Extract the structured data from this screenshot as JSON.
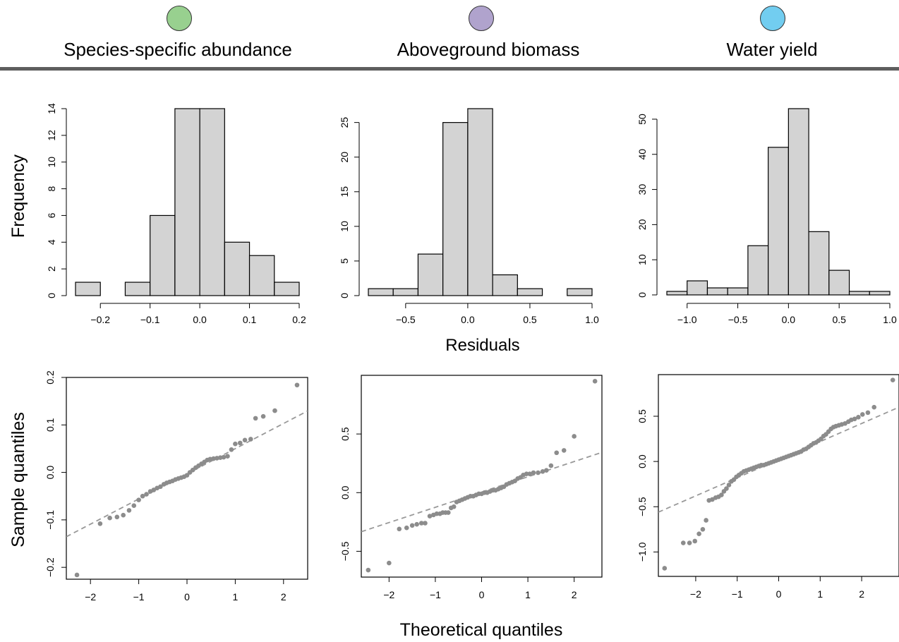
{
  "header": {
    "panels": [
      {
        "label": "Species-specific abundance",
        "color": "#98d08f"
      },
      {
        "label": "Aboveground biomass",
        "color": "#b0a3cd"
      },
      {
        "label": "Water yield",
        "color": "#72cdf0"
      }
    ]
  },
  "labels": {
    "frequency": "Frequency",
    "residuals": "Residuals",
    "sample_quantiles": "Sample quantiles",
    "theoretical_quantiles": "Theoretical quantiles"
  },
  "chart_data": [
    {
      "type": "bar",
      "panel": "Species-specific abundance",
      "subtype": "histogram",
      "bin_edges": [
        -0.25,
        -0.2,
        -0.15,
        -0.1,
        -0.05,
        0.0,
        0.05,
        0.1,
        0.15,
        0.2
      ],
      "counts": [
        1,
        0,
        1,
        6,
        14,
        14,
        4,
        3,
        1
      ],
      "xticks": [
        -0.2,
        -0.1,
        0.0,
        0.1,
        0.2
      ],
      "xtick_labels": [
        "−0.2",
        "−0.1",
        "0.0",
        "0.1",
        "0.2"
      ],
      "yticks": [
        0,
        2,
        4,
        6,
        8,
        10,
        12,
        14
      ],
      "ylim": [
        0,
        14
      ],
      "ylabel": "Frequency",
      "bar_color": "#d3d3d3"
    },
    {
      "type": "bar",
      "panel": "Aboveground biomass",
      "subtype": "histogram",
      "bin_edges": [
        -0.8,
        -0.6,
        -0.4,
        -0.2,
        0.0,
        0.2,
        0.4,
        0.6,
        0.8,
        1.0
      ],
      "counts": [
        1,
        1,
        6,
        25,
        27,
        3,
        1,
        0,
        1
      ],
      "xticks": [
        -0.5,
        0.0,
        0.5,
        1.0
      ],
      "xtick_labels": [
        "−0.5",
        "0.0",
        "0.5",
        "1.0"
      ],
      "yticks": [
        0,
        5,
        10,
        15,
        20,
        25
      ],
      "ylim": [
        0,
        27
      ],
      "xlabel": "Residuals",
      "bar_color": "#d3d3d3"
    },
    {
      "type": "bar",
      "panel": "Water yield",
      "subtype": "histogram",
      "bin_edges": [
        -1.2,
        -1.0,
        -0.8,
        -0.6,
        -0.4,
        -0.2,
        0.0,
        0.2,
        0.4,
        0.6,
        0.8,
        1.0
      ],
      "counts": [
        1,
        4,
        2,
        2,
        14,
        42,
        53,
        18,
        7,
        1,
        1
      ],
      "xticks": [
        -1.0,
        -0.5,
        0.0,
        0.5,
        1.0
      ],
      "xtick_labels": [
        "−1.0",
        "−0.5",
        "0.0",
        "0.5",
        "1.0"
      ],
      "yticks": [
        0,
        10,
        20,
        30,
        40,
        50
      ],
      "ylim": [
        0,
        53
      ],
      "bar_color": "#d3d3d3"
    },
    {
      "type": "scatter",
      "panel": "Species-specific abundance",
      "subtype": "qq",
      "xlim": [
        -2.5,
        2.5
      ],
      "ylim": [
        -0.225,
        0.2
      ],
      "xticks": [
        -2,
        -1,
        0,
        1,
        2
      ],
      "xtick_labels": [
        "−2",
        "−1",
        "0",
        "1",
        "2"
      ],
      "yticks": [
        -0.2,
        -0.1,
        0.0,
        0.1,
        0.2
      ],
      "ytick_labels": [
        "−0.2",
        "−0.1",
        "0.0",
        "0.1",
        "0.2"
      ],
      "ylabel": "Sample quantiles",
      "ref_line": {
        "intercept": -0.003,
        "slope": 0.053
      },
      "points": [
        [
          -2.28,
          -0.216
        ],
        [
          -1.8,
          -0.108
        ],
        [
          -1.6,
          -0.096
        ],
        [
          -1.45,
          -0.094
        ],
        [
          -1.32,
          -0.09
        ],
        [
          -1.2,
          -0.08
        ],
        [
          -1.1,
          -0.07
        ],
        [
          -1.0,
          -0.058
        ],
        [
          -0.92,
          -0.05
        ],
        [
          -0.84,
          -0.046
        ],
        [
          -0.76,
          -0.04
        ],
        [
          -0.69,
          -0.037
        ],
        [
          -0.62,
          -0.033
        ],
        [
          -0.55,
          -0.03
        ],
        [
          -0.48,
          -0.025
        ],
        [
          -0.42,
          -0.022
        ],
        [
          -0.36,
          -0.02
        ],
        [
          -0.3,
          -0.018
        ],
        [
          -0.24,
          -0.015
        ],
        [
          -0.18,
          -0.013
        ],
        [
          -0.12,
          -0.011
        ],
        [
          -0.06,
          -0.009
        ],
        [
          0.0,
          -0.006
        ],
        [
          0.06,
          0.0
        ],
        [
          0.12,
          0.005
        ],
        [
          0.18,
          0.01
        ],
        [
          0.24,
          0.014
        ],
        [
          0.3,
          0.018
        ],
        [
          0.36,
          0.022
        ],
        [
          0.42,
          0.026
        ],
        [
          0.48,
          0.028
        ],
        [
          0.55,
          0.029
        ],
        [
          0.62,
          0.03
        ],
        [
          0.69,
          0.031
        ],
        [
          0.76,
          0.032
        ],
        [
          0.84,
          0.034
        ],
        [
          0.92,
          0.048
        ],
        [
          1.0,
          0.06
        ],
        [
          1.1,
          0.062
        ],
        [
          1.2,
          0.068
        ],
        [
          1.32,
          0.07
        ],
        [
          1.42,
          0.114
        ],
        [
          1.58,
          0.118
        ],
        [
          1.82,
          0.13
        ],
        [
          2.28,
          0.184
        ]
      ]
    },
    {
      "type": "scatter",
      "panel": "Aboveground biomass",
      "subtype": "qq",
      "xlim": [
        -2.6,
        2.6
      ],
      "ylim": [
        -0.72,
        1.0
      ],
      "xticks": [
        -2,
        -1,
        0,
        1,
        2
      ],
      "xtick_labels": [
        "−2",
        "−1",
        "0",
        "1",
        "2"
      ],
      "yticks": [
        -0.5,
        0.0,
        0.5
      ],
      "ytick_labels": [
        "−0.5",
        "0.0",
        "0.5"
      ],
      "ref_line": {
        "intercept": 0.005,
        "slope": 0.13
      },
      "points": [
        [
          -2.45,
          -0.66
        ],
        [
          -2.0,
          -0.6
        ],
        [
          -1.78,
          -0.31
        ],
        [
          -1.62,
          -0.3
        ],
        [
          -1.5,
          -0.28
        ],
        [
          -1.4,
          -0.27
        ],
        [
          -1.3,
          -0.26
        ],
        [
          -1.22,
          -0.26
        ],
        [
          -1.12,
          -0.2
        ],
        [
          -1.04,
          -0.19
        ],
        [
          -0.97,
          -0.18
        ],
        [
          -0.9,
          -0.18
        ],
        [
          -0.84,
          -0.17
        ],
        [
          -0.78,
          -0.17
        ],
        [
          -0.72,
          -0.17
        ],
        [
          -0.66,
          -0.13
        ],
        [
          -0.6,
          -0.12
        ],
        [
          -0.54,
          -0.08
        ],
        [
          -0.48,
          -0.07
        ],
        [
          -0.42,
          -0.06
        ],
        [
          -0.36,
          -0.05
        ],
        [
          -0.3,
          -0.04
        ],
        [
          -0.24,
          -0.03
        ],
        [
          -0.18,
          -0.03
        ],
        [
          -0.12,
          -0.02
        ],
        [
          -0.06,
          -0.01
        ],
        [
          0.0,
          -0.01
        ],
        [
          0.06,
          0.0
        ],
        [
          0.12,
          0.0
        ],
        [
          0.18,
          0.01
        ],
        [
          0.24,
          0.02
        ],
        [
          0.3,
          0.02
        ],
        [
          0.36,
          0.03
        ],
        [
          0.42,
          0.04
        ],
        [
          0.48,
          0.05
        ],
        [
          0.54,
          0.07
        ],
        [
          0.6,
          0.08
        ],
        [
          0.66,
          0.09
        ],
        [
          0.72,
          0.1
        ],
        [
          0.78,
          0.12
        ],
        [
          0.84,
          0.13
        ],
        [
          0.9,
          0.15
        ],
        [
          0.97,
          0.16
        ],
        [
          1.04,
          0.16
        ],
        [
          1.12,
          0.17
        ],
        [
          1.22,
          0.17
        ],
        [
          1.32,
          0.18
        ],
        [
          1.4,
          0.19
        ],
        [
          1.5,
          0.23
        ],
        [
          1.62,
          0.34
        ],
        [
          1.78,
          0.36
        ],
        [
          2.0,
          0.48
        ],
        [
          2.45,
          0.95
        ]
      ]
    },
    {
      "type": "scatter",
      "panel": "Water yield",
      "subtype": "qq",
      "xlim": [
        -2.9,
        2.9
      ],
      "ylim": [
        -1.27,
        0.96
      ],
      "xticks": [
        -2,
        -1,
        0,
        1,
        2
      ],
      "xtick_labels": [
        "−2",
        "−1",
        "0",
        "1",
        "2"
      ],
      "yticks": [
        -1.0,
        -0.5,
        0.0,
        0.5
      ],
      "ytick_labels": [
        "−1.0",
        "−0.5",
        "0.0",
        "0.5"
      ],
      "ref_line": {
        "intercept": 0.02,
        "slope": 0.2
      },
      "points": [
        [
          -2.75,
          -1.18
        ],
        [
          -2.3,
          -0.9
        ],
        [
          -2.15,
          -0.9
        ],
        [
          -2.02,
          -0.88
        ],
        [
          -1.92,
          -0.8
        ],
        [
          -1.83,
          -0.75
        ],
        [
          -1.75,
          -0.65
        ],
        [
          -1.68,
          -0.43
        ],
        [
          -1.6,
          -0.42
        ],
        [
          -1.52,
          -0.4
        ],
        [
          -1.45,
          -0.39
        ],
        [
          -1.38,
          -0.37
        ],
        [
          -1.32,
          -0.33
        ],
        [
          -1.26,
          -0.3
        ],
        [
          -1.2,
          -0.26
        ],
        [
          -1.14,
          -0.22
        ],
        [
          -1.08,
          -0.2
        ],
        [
          -1.02,
          -0.17
        ],
        [
          -0.96,
          -0.15
        ],
        [
          -0.9,
          -0.13
        ],
        [
          -0.84,
          -0.11
        ],
        [
          -0.78,
          -0.1
        ],
        [
          -0.72,
          -0.09
        ],
        [
          -0.66,
          -0.08
        ],
        [
          -0.6,
          -0.07
        ],
        [
          -0.54,
          -0.06
        ],
        [
          -0.48,
          -0.05
        ],
        [
          -0.42,
          -0.04
        ],
        [
          -0.36,
          -0.04
        ],
        [
          -0.3,
          -0.03
        ],
        [
          -0.24,
          -0.02
        ],
        [
          -0.18,
          -0.01
        ],
        [
          -0.12,
          0.0
        ],
        [
          -0.06,
          0.01
        ],
        [
          0.0,
          0.02
        ],
        [
          0.06,
          0.03
        ],
        [
          0.12,
          0.04
        ],
        [
          0.18,
          0.05
        ],
        [
          0.24,
          0.06
        ],
        [
          0.3,
          0.07
        ],
        [
          0.36,
          0.08
        ],
        [
          0.42,
          0.09
        ],
        [
          0.48,
          0.1
        ],
        [
          0.54,
          0.11
        ],
        [
          0.6,
          0.13
        ],
        [
          0.66,
          0.14
        ],
        [
          0.72,
          0.16
        ],
        [
          0.78,
          0.18
        ],
        [
          0.84,
          0.2
        ],
        [
          0.9,
          0.21
        ],
        [
          0.96,
          0.23
        ],
        [
          1.02,
          0.25
        ],
        [
          1.08,
          0.28
        ],
        [
          1.14,
          0.3
        ],
        [
          1.2,
          0.33
        ],
        [
          1.26,
          0.36
        ],
        [
          1.32,
          0.38
        ],
        [
          1.38,
          0.39
        ],
        [
          1.45,
          0.4
        ],
        [
          1.52,
          0.41
        ],
        [
          1.6,
          0.42
        ],
        [
          1.68,
          0.44
        ],
        [
          1.75,
          0.46
        ],
        [
          1.83,
          0.47
        ],
        [
          1.92,
          0.49
        ],
        [
          2.02,
          0.52
        ],
        [
          2.15,
          0.54
        ],
        [
          2.3,
          0.6
        ],
        [
          2.75,
          0.9
        ]
      ]
    }
  ]
}
